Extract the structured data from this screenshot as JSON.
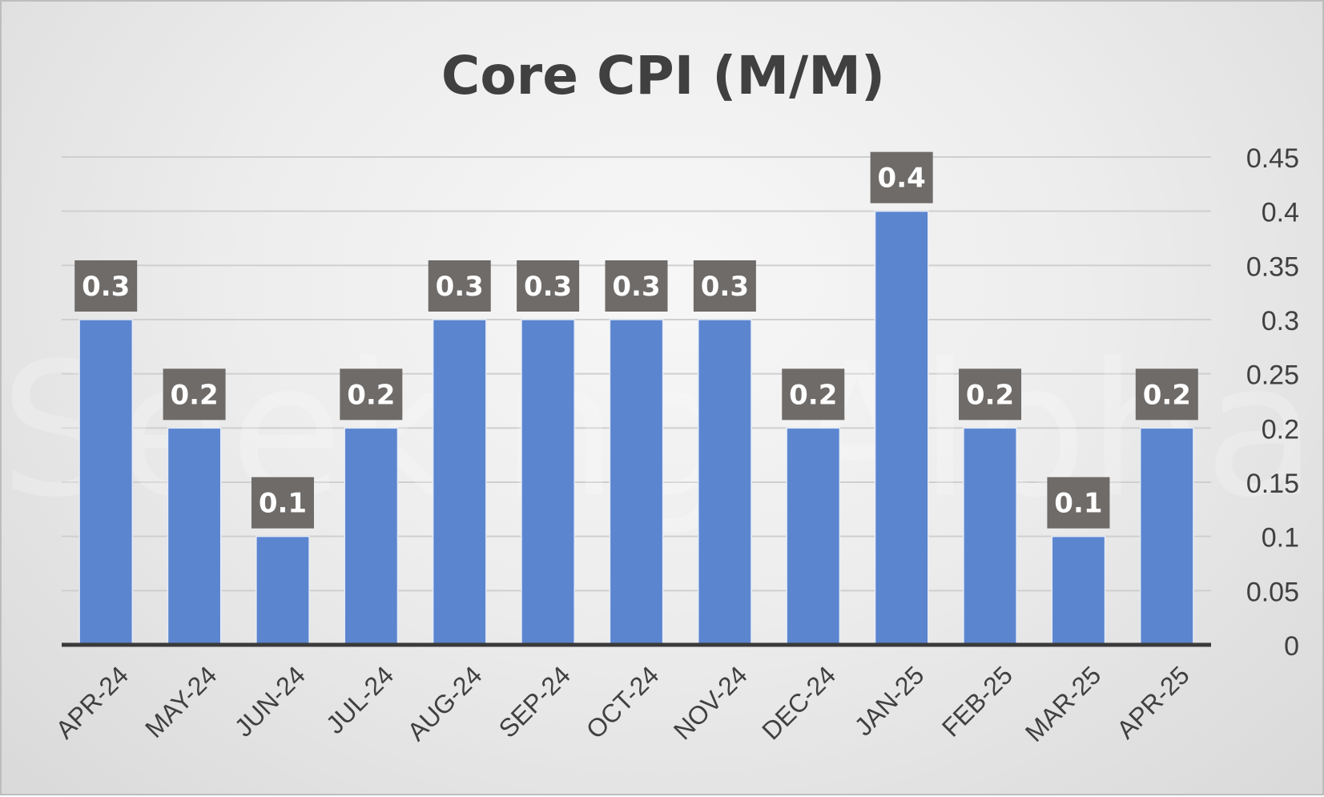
{
  "watermark_text": "Seeking Alpha",
  "colors": {
    "bar": "#5b85cf",
    "label_box": "#6e6b69",
    "grid": "#cfcfcf",
    "axis": "#3a3a3a"
  },
  "chart_data": {
    "type": "bar",
    "title": "Core CPI (M/M)",
    "xlabel": "",
    "ylabel": "",
    "categories": [
      "APR-24",
      "MAY-24",
      "JUN-24",
      "JUL-24",
      "AUG-24",
      "SEP-24",
      "OCT-24",
      "NOV-24",
      "DEC-24",
      "JAN-25",
      "FEB-25",
      "MAR-25",
      "APR-25"
    ],
    "values": [
      0.3,
      0.2,
      0.1,
      0.2,
      0.3,
      0.3,
      0.3,
      0.3,
      0.2,
      0.4,
      0.2,
      0.1,
      0.2
    ],
    "data_labels": [
      "0.3",
      "0.2",
      "0.1",
      "0.2",
      "0.3",
      "0.3",
      "0.3",
      "0.3",
      "0.2",
      "0.4",
      "0.2",
      "0.1",
      "0.2"
    ],
    "y_ticks": [
      "0",
      "0.05",
      "0.1",
      "0.15",
      "0.2",
      "0.25",
      "0.3",
      "0.35",
      "0.4",
      "0.45"
    ],
    "ylim": [
      0,
      0.45
    ],
    "y_axis_side": "right",
    "grid": true,
    "legend": "none"
  }
}
